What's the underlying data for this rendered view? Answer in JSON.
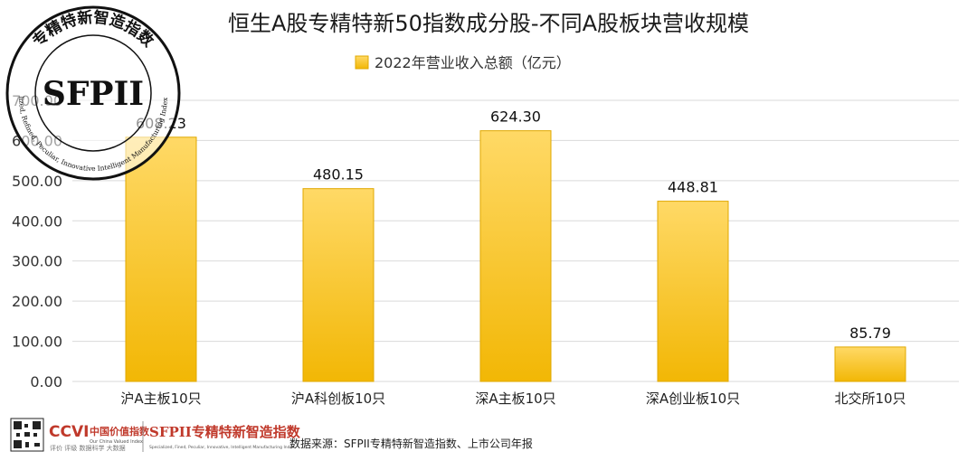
{
  "chart_data": {
    "type": "bar",
    "title": "恒生A股专精特新50指数成分股-不同A股板块营收规模",
    "categories": [
      "沪A主板10只",
      "沪A科创板10只",
      "深A主板10只",
      "深A创业板10只",
      "北交所10只"
    ],
    "series": [
      {
        "name": "2022年营业收入总额（亿元）",
        "values": [
          608.23,
          480.15,
          624.3,
          448.81,
          85.79
        ]
      }
    ],
    "data_labels": [
      "608.23",
      "480.15",
      "624.30",
      "448.81",
      "85.79"
    ],
    "ylim": [
      0,
      700
    ],
    "yticks": [
      "0.00",
      "100.00",
      "200.00",
      "300.00",
      "400.00",
      "500.00",
      "600.00",
      "700.00"
    ],
    "grid": true,
    "legend_position": "top-center",
    "colors": {
      "bar_top": "#FFD966",
      "bar_bottom": "#F2B705",
      "bar_stroke": "#E0A800",
      "grid": "#d9d9d9"
    }
  },
  "stamp": {
    "center_text": "SFPII",
    "ring_top": "专精特新智造指数",
    "ring_bottom": "Specialized, Refined, Peculiar, Innovative Intelligent Manufacturing Index(SFPII)"
  },
  "footer": {
    "ccvi_logo": "CCVI",
    "ccvi_cn": "中国价值指数",
    "ccvi_en": "Our China Valued Index",
    "ccvi_sub": "评价 评级 数据科学 大数据",
    "sfpii_logo": "SFPII专精特新智造指数",
    "sfpii_en": "Specialized, Fined, Peculiar, Innovative, Intelligent Manufacturing Index",
    "source_text": "数据来源：SFPII专精特新智造指数、上市公司年报"
  }
}
